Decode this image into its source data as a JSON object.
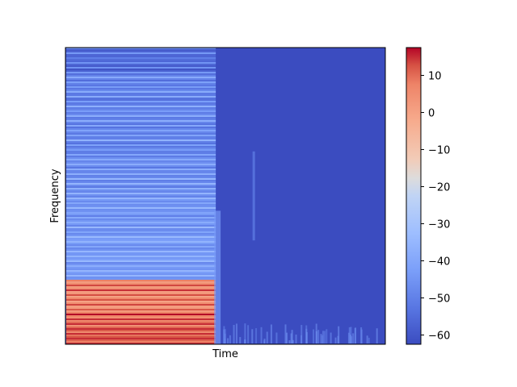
{
  "chart_data": {
    "type": "heatmap",
    "title": "",
    "xlabel": "Time",
    "ylabel": "Frequency",
    "x_ticks_visible": false,
    "y_ticks_visible": false,
    "grid": false,
    "colormap": "coolwarm",
    "colorbar": {
      "range": [
        -62.5,
        17.5
      ],
      "ticks": [
        10,
        0,
        -10,
        -20,
        -30,
        -40,
        -50,
        -60
      ],
      "tick_labels": [
        "10",
        "0",
        "−10",
        "−20",
        "−30",
        "−40",
        "−50",
        "−60"
      ]
    },
    "onset_fraction": 0.47,
    "approx_levels_db": {
      "background": -60,
      "sound_high_freq": -48,
      "sound_mid_freq": -40,
      "sound_low_harmonics": 5,
      "sound_peak": 15
    },
    "colors": {
      "cold": "#3b4cc0",
      "neutral": "#dddddd",
      "hot": "#b40426"
    }
  }
}
